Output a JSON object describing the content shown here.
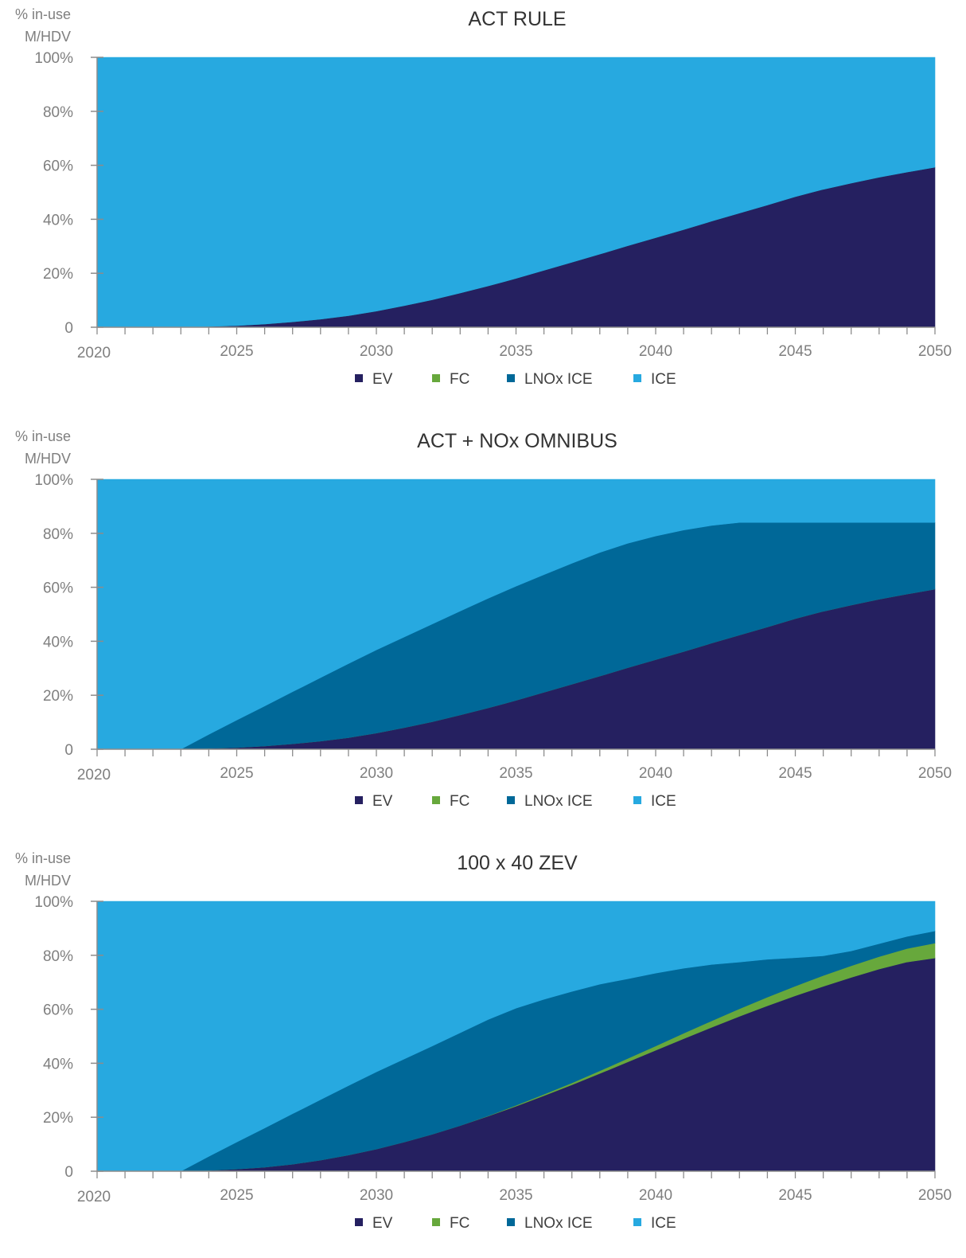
{
  "colors": {
    "EV": "#252060",
    "FC": "#67a83c",
    "LNOx ICE": "#006898",
    "ICE": "#27a9e0",
    "axis": "#8c8c8c",
    "text": "#7f7f7f"
  },
  "chart_data": [
    {
      "type": "area",
      "stacked": true,
      "title": "ACT RULE",
      "ylabel": "% in-use M/HDV",
      "xlabel": "",
      "x": [
        2020,
        2021,
        2022,
        2023,
        2024,
        2025,
        2026,
        2027,
        2028,
        2029,
        2030,
        2031,
        2032,
        2033,
        2034,
        2035,
        2036,
        2037,
        2038,
        2039,
        2040,
        2041,
        2042,
        2043,
        2044,
        2045,
        2046,
        2047,
        2048,
        2049,
        2050
      ],
      "xlim": [
        2020,
        2050
      ],
      "ylim": [
        0,
        100
      ],
      "xticks": [
        "2020",
        "2025",
        "2030",
        "2035",
        "2040",
        "2045",
        "2050"
      ],
      "yticks": [
        "0",
        "20%",
        "40%",
        "60%",
        "80%",
        "100%"
      ],
      "legend": [
        "EV",
        "FC",
        "LNOx ICE",
        "ICE"
      ],
      "legend_position": "bottom",
      "series": [
        {
          "name": "EV",
          "values": [
            0,
            0,
            0,
            0,
            0.3,
            0.6,
            1.2,
            2.0,
            3.0,
            4.3,
            6.0,
            8.0,
            10.2,
            12.7,
            15.3,
            18.1,
            21.1,
            24.1,
            27.1,
            30.2,
            33.2,
            36.2,
            39.3,
            42.3,
            45.3,
            48.4,
            51.1,
            53.4,
            55.6,
            57.5,
            59.3
          ]
        },
        {
          "name": "FC",
          "values": [
            0,
            0,
            0,
            0,
            0,
            0,
            0,
            0,
            0,
            0,
            0,
            0,
            0,
            0,
            0,
            0,
            0,
            0,
            0,
            0,
            0,
            0,
            0,
            0,
            0,
            0,
            0,
            0,
            0,
            0,
            0
          ]
        },
        {
          "name": "LNOx ICE",
          "values": [
            0,
            0,
            0,
            0,
            0,
            0,
            0,
            0,
            0,
            0,
            0,
            0,
            0,
            0,
            0,
            0,
            0,
            0,
            0,
            0,
            0,
            0,
            0,
            0,
            0,
            0,
            0,
            0,
            0,
            0,
            0
          ]
        },
        {
          "name": "ICE",
          "values": [
            100,
            100,
            100,
            100,
            99.7,
            99.4,
            98.8,
            98.0,
            97.0,
            95.7,
            94.0,
            92.0,
            89.8,
            87.3,
            84.7,
            81.9,
            78.9,
            75.9,
            72.9,
            69.8,
            66.8,
            63.8,
            60.7,
            57.7,
            54.7,
            51.6,
            48.9,
            46.6,
            44.4,
            42.5,
            40.7
          ]
        }
      ]
    },
    {
      "type": "area",
      "stacked": true,
      "title": "ACT + NOx OMNIBUS",
      "ylabel": "% in-use M/HDV",
      "xlabel": "",
      "x": [
        2020,
        2021,
        2022,
        2023,
        2024,
        2025,
        2026,
        2027,
        2028,
        2029,
        2030,
        2031,
        2032,
        2033,
        2034,
        2035,
        2036,
        2037,
        2038,
        2039,
        2040,
        2041,
        2042,
        2043,
        2044,
        2045,
        2046,
        2047,
        2048,
        2049,
        2050
      ],
      "xlim": [
        2020,
        2050
      ],
      "ylim": [
        0,
        100
      ],
      "xticks": [
        "2020",
        "2025",
        "2030",
        "2035",
        "2040",
        "2045",
        "2050"
      ],
      "yticks": [
        "0",
        "20%",
        "40%",
        "60%",
        "80%",
        "100%"
      ],
      "legend": [
        "EV",
        "FC",
        "LNOx ICE",
        "ICE"
      ],
      "legend_position": "bottom",
      "series": [
        {
          "name": "EV",
          "values": [
            0,
            0,
            0,
            0,
            0.3,
            0.6,
            1.2,
            2.0,
            3.0,
            4.3,
            6.0,
            8.0,
            10.2,
            12.7,
            15.3,
            18.1,
            21.1,
            24.1,
            27.1,
            30.2,
            33.2,
            36.2,
            39.3,
            42.3,
            45.3,
            48.4,
            51.1,
            53.4,
            55.6,
            57.5,
            59.3
          ]
        },
        {
          "name": "FC",
          "values": [
            0,
            0,
            0,
            0,
            0,
            0,
            0,
            0,
            0,
            0,
            0,
            0,
            0,
            0,
            0,
            0,
            0,
            0,
            0,
            0,
            0,
            0,
            0,
            0,
            0,
            0,
            0,
            0,
            0,
            0,
            0
          ]
        },
        {
          "name": "LNOx ICE",
          "values": [
            0,
            0,
            0,
            0,
            5.2,
            10.2,
            14.8,
            19.3,
            23.5,
            27.4,
            30.8,
            33.6,
            36.2,
            38.5,
            40.6,
            42.3,
            43.6,
            44.8,
            45.8,
            46.1,
            45.8,
            45.0,
            43.6,
            41.7,
            38.7,
            35.6,
            32.9,
            30.6,
            28.4,
            26.5,
            24.7
          ]
        },
        {
          "name": "ICE",
          "values": [
            100,
            100,
            100,
            100,
            94.5,
            89.2,
            84.0,
            78.7,
            73.5,
            68.3,
            63.2,
            58.4,
            53.6,
            48.8,
            44.1,
            39.6,
            35.3,
            31.1,
            27.1,
            23.7,
            21.0,
            18.8,
            17.1,
            16.0,
            16.0,
            16.0,
            16.0,
            16.0,
            16.0,
            16.0,
            16.0
          ]
        }
      ]
    },
    {
      "type": "area",
      "stacked": true,
      "title": "100 x 40 ZEV",
      "ylabel": "% in-use M/HDV",
      "xlabel": "",
      "x": [
        2020,
        2021,
        2022,
        2023,
        2024,
        2025,
        2026,
        2027,
        2028,
        2029,
        2030,
        2031,
        2032,
        2033,
        2034,
        2035,
        2036,
        2037,
        2038,
        2039,
        2040,
        2041,
        2042,
        2043,
        2044,
        2045,
        2046,
        2047,
        2048,
        2049,
        2050
      ],
      "xlim": [
        2020,
        2050
      ],
      "ylim": [
        0,
        100
      ],
      "xticks": [
        "2020",
        "2025",
        "2030",
        "2035",
        "2040",
        "2045",
        "2050"
      ],
      "yticks": [
        "0",
        "20%",
        "40%",
        "60%",
        "80%",
        "100%"
      ],
      "legend": [
        "EV",
        "FC",
        "LNOx ICE",
        "ICE"
      ],
      "legend_position": "bottom",
      "series": [
        {
          "name": "EV",
          "values": [
            0,
            0,
            0,
            0,
            0.3,
            0.8,
            1.5,
            2.6,
            4.1,
            6.0,
            8.2,
            10.8,
            13.7,
            16.9,
            20.4,
            24.1,
            28.0,
            32.0,
            36.2,
            40.5,
            44.8,
            49.1,
            53.3,
            57.4,
            61.3,
            65.0,
            68.5,
            71.8,
            74.9,
            77.5,
            79.0
          ]
        },
        {
          "name": "FC",
          "values": [
            0,
            0,
            0,
            0,
            0,
            0,
            0,
            0,
            0,
            0,
            0,
            0,
            0,
            0,
            0.1,
            0.3,
            0.5,
            0.7,
            1.0,
            1.3,
            1.6,
            2.0,
            2.4,
            2.8,
            3.2,
            3.6,
            4.0,
            4.3,
            4.6,
            5.0,
            5.5
          ]
        },
        {
          "name": "LNOx ICE",
          "values": [
            0,
            0,
            0,
            0,
            5.2,
            10.0,
            14.5,
            18.7,
            22.4,
            25.7,
            28.6,
            30.8,
            32.7,
            34.4,
            35.7,
            36.0,
            35.2,
            33.9,
            32.1,
            29.5,
            27.0,
            24.1,
            20.9,
            17.3,
            14.0,
            10.5,
            7.3,
            5.5,
            4.8,
            4.5,
            4.5
          ]
        },
        {
          "name": "ICE",
          "values": [
            100,
            100,
            100,
            100,
            94.5,
            89.2,
            84.0,
            78.7,
            73.5,
            68.3,
            63.2,
            58.4,
            53.6,
            48.7,
            43.8,
            39.6,
            36.3,
            33.4,
            30.7,
            28.7,
            26.6,
            24.8,
            23.4,
            22.5,
            21.5,
            20.9,
            20.2,
            18.4,
            15.7,
            13.0,
            11.0
          ]
        }
      ]
    }
  ]
}
